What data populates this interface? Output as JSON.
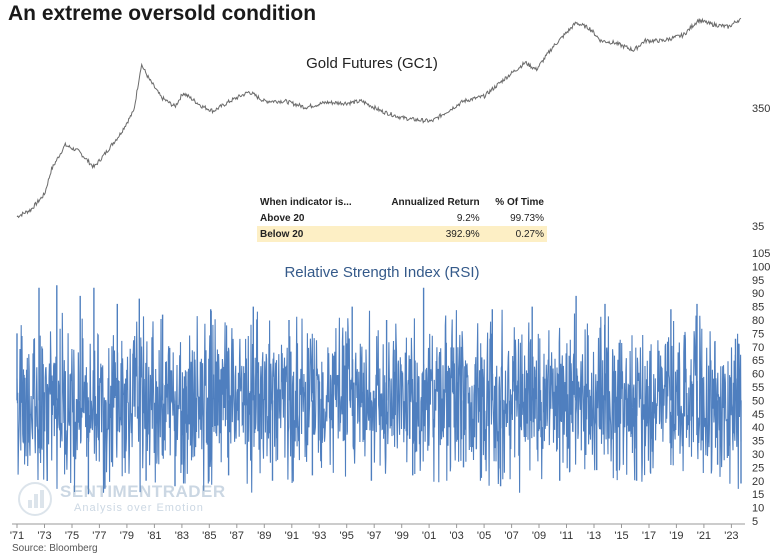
{
  "title": "An extreme oversold condition",
  "source": "Source: Bloomberg",
  "watermark": {
    "brand": "SENTIMENTRADER",
    "tagline": "Analysis over Emotion"
  },
  "colors": {
    "price_line": "#6b6b6b",
    "rsi_line": "#4f7fbf",
    "highlight_row": "#fdefc5"
  },
  "table": {
    "headers": [
      "When indicator is...",
      "Annualized Return",
      "% Of Time"
    ],
    "rows": [
      {
        "label": "Above 20",
        "return": "9.2%",
        "time": "99.73%",
        "highlight": false
      },
      {
        "label": "Below 20",
        "return": "392.9%",
        "time": "0.27%",
        "highlight": true
      }
    ]
  },
  "chart_data": [
    {
      "type": "line",
      "title": "Gold Futures (GC1)",
      "scale": "log",
      "y_tick_labels": [
        "350",
        "35"
      ],
      "series": [
        {
          "x": [
            1971.0,
            1972.0,
            1973.0,
            1973.5,
            1974.5,
            1975.5,
            1976.6,
            1977.5,
            1978.5,
            1979.5,
            1980.05,
            1980.6,
            1981.5,
            1982.5,
            1983.1,
            1984.5,
            1985.3,
            1986.5,
            1987.9,
            1989.0,
            1990.5,
            1992.0,
            1993.5,
            1995.0,
            1996.1,
            1997.5,
            1999.0,
            1999.8,
            2001.2,
            2002.0,
            2003.5,
            2005.0,
            2006.5,
            2008.0,
            2008.8,
            2010.0,
            2011.7,
            2012.7,
            2013.5,
            2014.5,
            2015.9,
            2016.7,
            2018.0,
            2019.5,
            2020.6,
            2021.5,
            2022.8,
            2023.5
          ],
          "y": [
            42,
            48,
            65,
            105,
            170,
            150,
            110,
            148,
            210,
            330,
            820,
            620,
            430,
            360,
            470,
            360,
            330,
            400,
            480,
            400,
            400,
            355,
            390,
            385,
            400,
            330,
            290,
            280,
            270,
            310,
            400,
            440,
            620,
            850,
            740,
            1150,
            1850,
            1650,
            1300,
            1250,
            1080,
            1300,
            1300,
            1450,
            1950,
            1800,
            1700,
            1950
          ]
        }
      ]
    },
    {
      "type": "line",
      "title": "Relative Strength Index (RSI)",
      "x_tick_labels": [
        "'71",
        "'73",
        "'75",
        "'77",
        "'79",
        "'81",
        "'83",
        "'85",
        "'87",
        "'89",
        "'91",
        "'93",
        "'95",
        "'97",
        "'99",
        "'01",
        "'03",
        "'05",
        "'07",
        "'09",
        "'11",
        "'13",
        "'15",
        "'17",
        "'19",
        "'21",
        "'23"
      ],
      "y_ticks": [
        5,
        10,
        15,
        20,
        25,
        30,
        35,
        40,
        45,
        50,
        55,
        60,
        65,
        70,
        75,
        80,
        85,
        90,
        95,
        100,
        105
      ],
      "ylim": [
        5,
        105
      ],
      "series": [
        {
          "x": [
            1971.0,
            1971.8,
            1972.6,
            1973.2,
            1973.9,
            1975.6,
            1976.2,
            1976.6,
            1977.4,
            1978.3,
            1979.9,
            1980.4,
            1981.6,
            1982.5,
            1985.1,
            1986.4,
            1988.2,
            1989.6,
            1990.8,
            1992.5,
            1995.4,
            1996.8,
            1997.9,
            1999.8,
            2000.6,
            2003.5,
            2005.6,
            2006.2,
            2008.5,
            2010.5,
            2011.7,
            2013.2,
            2013.8,
            2016.1,
            2018.6,
            2020.5,
            2022.0,
            2023.3,
            2023.7
          ],
          "y": [
            75,
            38,
            92,
            20,
            93,
            89,
            15,
            92,
            17,
            86,
            88,
            20,
            82,
            18,
            84,
            22,
            85,
            20,
            80,
            22,
            85,
            20,
            80,
            22,
            92,
            25,
            84,
            18,
            85,
            20,
            89,
            24,
            86,
            20,
            84,
            86,
            26,
            73,
            19
          ]
        }
      ]
    }
  ]
}
